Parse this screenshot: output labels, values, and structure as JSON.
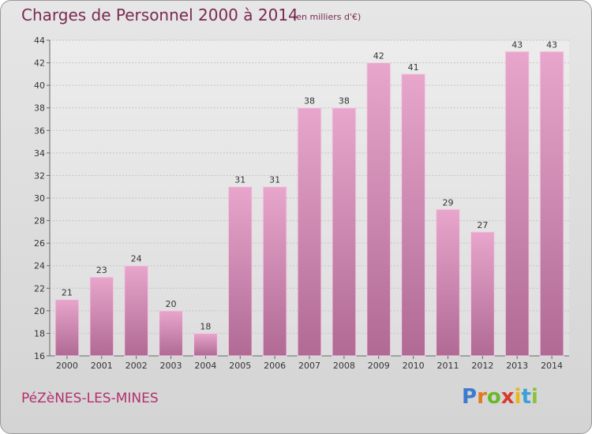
{
  "title": "Charges de Personnel 2000 à 2014",
  "unit_note": "(en milliers d'€)",
  "commune": "PéZèNES-LES-MINES",
  "logo": {
    "text": "Proxiti",
    "letters": [
      {
        "ch": "P",
        "color": "#3a7ad0"
      },
      {
        "ch": "r",
        "color": "#e07a1a"
      },
      {
        "ch": "o",
        "color": "#6ab82a"
      },
      {
        "ch": "x",
        "color": "#d83a2a"
      },
      {
        "ch": "i",
        "color": "#e8b81a"
      },
      {
        "ch": "t",
        "color": "#3aa0d8"
      },
      {
        "ch": "i",
        "color": "#8ac23a"
      }
    ]
  },
  "chart_data": {
    "type": "bar",
    "title": "Charges de Personnel 2000 à 2014",
    "xlabel": "",
    "ylabel": "",
    "categories": [
      "2000",
      "2001",
      "2002",
      "2003",
      "2004",
      "2005",
      "2006",
      "2007",
      "2008",
      "2009",
      "2010",
      "2011",
      "2012",
      "2013",
      "2014"
    ],
    "values": [
      21,
      23,
      24,
      20,
      18,
      31,
      31,
      38,
      38,
      42,
      41,
      29,
      27,
      43,
      43
    ],
    "ylim": [
      16,
      44
    ],
    "yticks": [
      16,
      18,
      20,
      22,
      24,
      26,
      28,
      30,
      32,
      34,
      36,
      38,
      40,
      42,
      44
    ],
    "grid": true,
    "bar_color_top": "#e8a6cc",
    "bar_color_bottom": "#b06a94"
  }
}
